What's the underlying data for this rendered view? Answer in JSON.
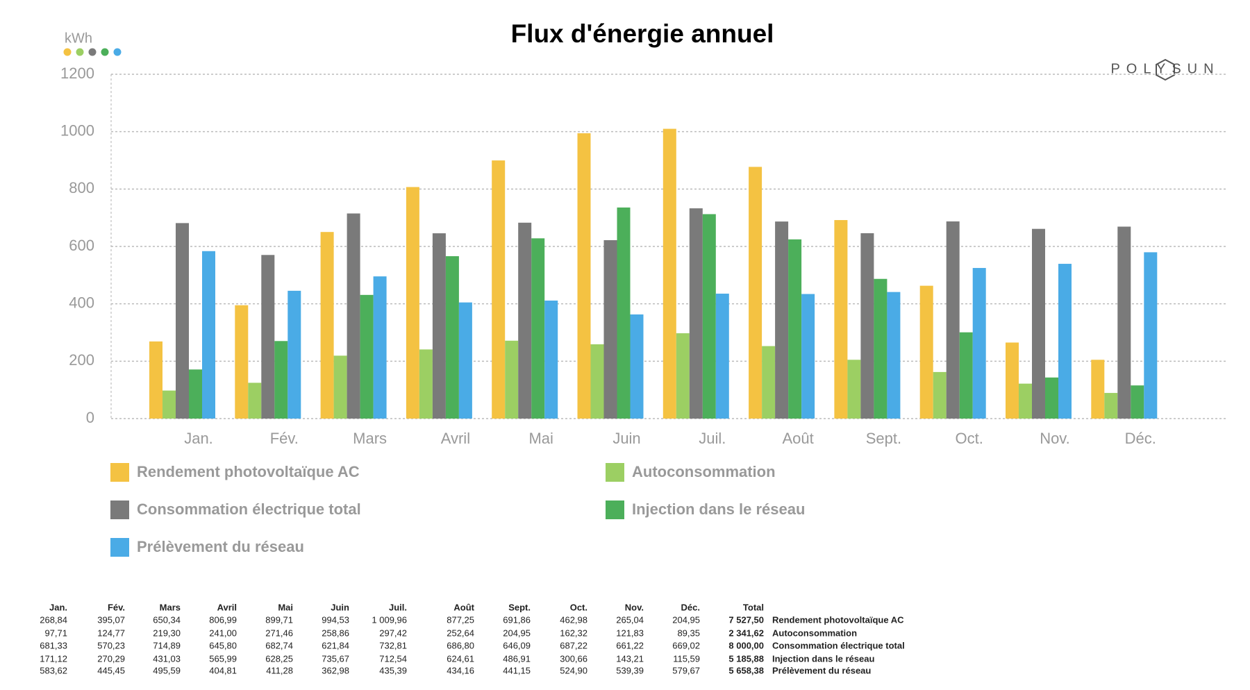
{
  "chart_data": {
    "type": "bar",
    "title": "Flux d'énergie annuel",
    "unit": "kWh",
    "logo": "POLYSUN",
    "categories": [
      "Jan.",
      "Fév.",
      "Mars",
      "Avril",
      "Mai",
      "Juin",
      "Juil.",
      "Août",
      "Sept.",
      "Oct.",
      "Nov.",
      "Déc."
    ],
    "ylim": [
      0,
      1200
    ],
    "yticks": [
      0,
      200,
      400,
      600,
      800,
      1000,
      1200
    ],
    "grid": true,
    "series": [
      {
        "name": "Rendement photovoltaïque AC",
        "color": "#f4c242",
        "values": [
          268.84,
          395.07,
          650.34,
          806.99,
          899.71,
          994.53,
          1009.96,
          877.25,
          691.86,
          462.98,
          265.04,
          204.95
        ],
        "value_labels": [
          "268,84",
          "395,07",
          "650,34",
          "806,99",
          "899,71",
          "994,53",
          "1 009,96",
          "877,25",
          "691,86",
          "462,98",
          "265,04",
          "204,95"
        ]
      },
      {
        "name": "Autoconsommation",
        "color": "#9ccf63",
        "values": [
          97.71,
          124.77,
          219.3,
          241.0,
          271.46,
          258.86,
          297.42,
          252.64,
          204.95,
          162.32,
          121.83,
          89.35
        ],
        "value_labels": [
          "97,71",
          "124,77",
          "219,30",
          "241,00",
          "271,46",
          "258,86",
          "297,42",
          "252,64",
          "204,95",
          "162,32",
          "121,83",
          "89,35"
        ]
      },
      {
        "name": "Consommation électrique total",
        "color": "#7a7a7a",
        "values": [
          681.33,
          570.23,
          714.89,
          645.8,
          682.74,
          621.84,
          732.81,
          686.8,
          646.09,
          687.22,
          661.22,
          669.02
        ],
        "value_labels": [
          "681,33",
          "570,23",
          "714,89",
          "645,80",
          "682,74",
          "621,84",
          "732,81",
          "686,80",
          "646,09",
          "687,22",
          "661,22",
          "669,02"
        ]
      },
      {
        "name": "Injection dans le réseau",
        "color": "#4caf5a",
        "values": [
          171.12,
          270.29,
          431.03,
          565.99,
          628.25,
          735.67,
          712.54,
          624.61,
          486.91,
          300.66,
          143.21,
          115.59
        ],
        "value_labels": [
          "171,12",
          "270,29",
          "431,03",
          "565,99",
          "628,25",
          "735,67",
          "712,54",
          "624,61",
          "486,91",
          "300,66",
          "143,21",
          "115,59"
        ]
      },
      {
        "name": "Prélèvement du réseau",
        "color": "#4aabe6",
        "values": [
          583.62,
          445.45,
          495.59,
          404.81,
          411.28,
          362.98,
          435.39,
          434.16,
          441.15,
          524.9,
          539.39,
          579.67
        ],
        "value_labels": [
          "583,62",
          "445,45",
          "495,59",
          "404,81",
          "411,28",
          "362,98",
          "435,39",
          "434,16",
          "441,15",
          "524,90",
          "539,39",
          "579,67"
        ]
      }
    ],
    "table": {
      "total_header": "Total",
      "totals": [
        "7 527,50",
        "2 341,62",
        "8 000,00",
        "5 185,88",
        "5 658,38"
      ]
    }
  }
}
